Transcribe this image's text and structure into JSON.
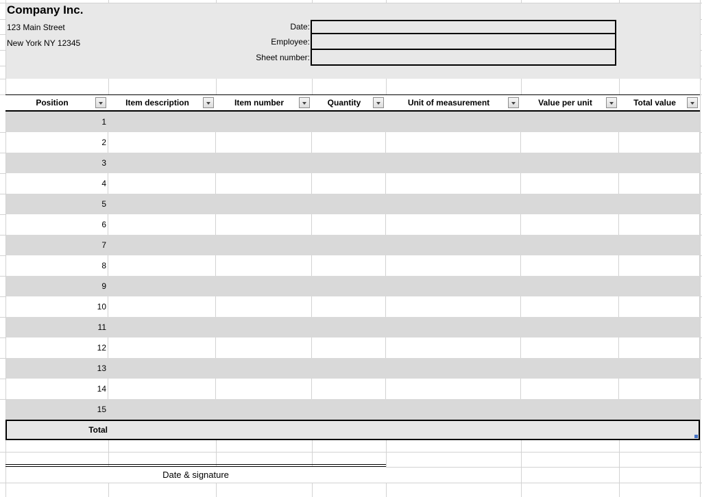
{
  "company": {
    "name": "Company Inc.",
    "address_line_1": "123 Main Street",
    "address_line_2": "New York NY 12345"
  },
  "form": {
    "fields": [
      {
        "label": "Date:",
        "value": ""
      },
      {
        "label": "Employee:",
        "value": ""
      },
      {
        "label": "Sheet number:",
        "value": ""
      }
    ]
  },
  "table": {
    "columns": [
      "Position",
      "Item description",
      "Item number",
      "Quantity",
      "Unit of measurement",
      "Value per unit",
      "Total value"
    ],
    "rows": [
      {
        "position": "1",
        "cells": [
          "",
          "",
          "",
          "",
          "",
          ""
        ]
      },
      {
        "position": "2",
        "cells": [
          "",
          "",
          "",
          "",
          "",
          ""
        ]
      },
      {
        "position": "3",
        "cells": [
          "",
          "",
          "",
          "",
          "",
          ""
        ]
      },
      {
        "position": "4",
        "cells": [
          "",
          "",
          "",
          "",
          "",
          ""
        ]
      },
      {
        "position": "5",
        "cells": [
          "",
          "",
          "",
          "",
          "",
          ""
        ]
      },
      {
        "position": "6",
        "cells": [
          "",
          "",
          "",
          "",
          "",
          ""
        ]
      },
      {
        "position": "7",
        "cells": [
          "",
          "",
          "",
          "",
          "",
          ""
        ]
      },
      {
        "position": "8",
        "cells": [
          "",
          "",
          "",
          "",
          "",
          ""
        ]
      },
      {
        "position": "9",
        "cells": [
          "",
          "",
          "",
          "",
          "",
          ""
        ]
      },
      {
        "position": "10",
        "cells": [
          "",
          "",
          "",
          "",
          "",
          ""
        ]
      },
      {
        "position": "11",
        "cells": [
          "",
          "",
          "",
          "",
          "",
          ""
        ]
      },
      {
        "position": "12",
        "cells": [
          "",
          "",
          "",
          "",
          "",
          ""
        ]
      },
      {
        "position": "13",
        "cells": [
          "",
          "",
          "",
          "",
          "",
          ""
        ]
      },
      {
        "position": "14",
        "cells": [
          "",
          "",
          "",
          "",
          "",
          ""
        ]
      },
      {
        "position": "15",
        "cells": [
          "",
          "",
          "",
          "",
          "",
          ""
        ]
      }
    ],
    "total_label": "Total",
    "total_value": ""
  },
  "footer": {
    "signature_label": "Date & signature"
  },
  "icons": {
    "filter_button": "chevron-down-icon"
  },
  "colors": {
    "header_block_fill": "#e8e8e8",
    "row_stripe_fill": "#d9d9d9",
    "total_row_fill": "#e6e6e6",
    "gridline": "#d2d2d2",
    "table_border": "#000000",
    "resize_handle_blue": "#4472c4"
  }
}
